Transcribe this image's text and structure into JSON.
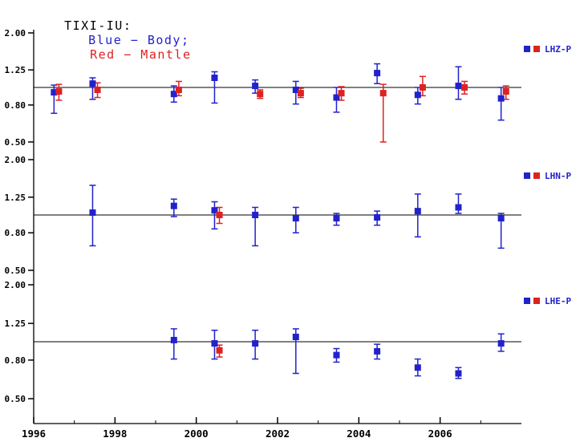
{
  "title": {
    "station": "TIXI-IU:",
    "body_label": "Blue − Body;",
    "mantle_label": "Red − Mantle"
  },
  "colors": {
    "body": "#2222cc",
    "mantle": "#dd2222",
    "axis": "#000000",
    "ref_line": "#000000"
  },
  "xaxis": {
    "min": 1996,
    "max": 2008,
    "ticks": [
      1996,
      1998,
      2000,
      2002,
      2004,
      2006
    ],
    "minor_ticks": [
      1997,
      1999,
      2001,
      2003,
      2005,
      2007
    ]
  },
  "chart_data": [
    {
      "type": "scatter",
      "label": "LHZ-P",
      "xlabel": "",
      "ylabel": "",
      "ylim": [
        0.5,
        2.0
      ],
      "yticks": [
        2.0,
        1.25,
        0.8,
        0.5
      ],
      "ref_y": 1.0,
      "legend_position": "right",
      "series": [
        {
          "name": "Body",
          "color_key": "body",
          "points": [
            {
              "x": 1996.5,
              "y": 0.94,
              "lo": 0.72,
              "hi": 1.03
            },
            {
              "x": 1997.45,
              "y": 1.05,
              "lo": 0.86,
              "hi": 1.13
            },
            {
              "x": 1999.45,
              "y": 0.92,
              "lo": 0.83,
              "hi": 1.02
            },
            {
              "x": 2000.45,
              "y": 1.13,
              "lo": 0.82,
              "hi": 1.22
            },
            {
              "x": 2001.45,
              "y": 1.02,
              "lo": 0.93,
              "hi": 1.1
            },
            {
              "x": 2002.45,
              "y": 0.97,
              "lo": 0.81,
              "hi": 1.08
            },
            {
              "x": 2003.45,
              "y": 0.88,
              "lo": 0.73,
              "hi": 1.0
            },
            {
              "x": 2004.45,
              "y": 1.2,
              "lo": 1.05,
              "hi": 1.35
            },
            {
              "x": 2005.45,
              "y": 0.91,
              "lo": 0.81,
              "hi": 1.0
            },
            {
              "x": 2006.45,
              "y": 1.02,
              "lo": 0.86,
              "hi": 1.3
            },
            {
              "x": 2007.5,
              "y": 0.87,
              "lo": 0.66,
              "hi": 1.0
            }
          ]
        },
        {
          "name": "Mantle",
          "color_key": "mantle",
          "points": [
            {
              "x": 1996.62,
              "y": 0.95,
              "lo": 0.85,
              "hi": 1.04
            },
            {
              "x": 1997.57,
              "y": 0.97,
              "lo": 0.88,
              "hi": 1.06
            },
            {
              "x": 1999.57,
              "y": 0.97,
              "lo": 0.9,
              "hi": 1.08
            },
            {
              "x": 2001.57,
              "y": 0.92,
              "lo": 0.87,
              "hi": 0.97
            },
            {
              "x": 2002.57,
              "y": 0.93,
              "lo": 0.88,
              "hi": 0.99
            },
            {
              "x": 2003.57,
              "y": 0.93,
              "lo": 0.85,
              "hi": 1.01
            },
            {
              "x": 2004.6,
              "y": 0.93,
              "lo": 0.5,
              "hi": 1.04
            },
            {
              "x": 2005.57,
              "y": 1.0,
              "lo": 0.9,
              "hi": 1.15
            },
            {
              "x": 2006.6,
              "y": 1.0,
              "lo": 0.92,
              "hi": 1.08
            },
            {
              "x": 2007.62,
              "y": 0.95,
              "lo": 0.86,
              "hi": 1.02
            }
          ]
        }
      ]
    },
    {
      "type": "scatter",
      "label": "LHN-P",
      "xlabel": "",
      "ylabel": "",
      "ylim": [
        0.5,
        2.0
      ],
      "yticks": [
        2.0,
        1.25,
        0.8,
        0.5
      ],
      "ref_y": 1.0,
      "legend_position": "right",
      "series": [
        {
          "name": "Body",
          "color_key": "body",
          "points": [
            {
              "x": 1997.45,
              "y": 1.03,
              "lo": 0.68,
              "hi": 1.45
            },
            {
              "x": 1999.45,
              "y": 1.12,
              "lo": 0.98,
              "hi": 1.22
            },
            {
              "x": 2000.45,
              "y": 1.06,
              "lo": 0.84,
              "hi": 1.18
            },
            {
              "x": 2001.45,
              "y": 1.0,
              "lo": 0.68,
              "hi": 1.1
            },
            {
              "x": 2002.45,
              "y": 0.96,
              "lo": 0.8,
              "hi": 1.1
            },
            {
              "x": 2003.45,
              "y": 0.96,
              "lo": 0.88,
              "hi": 1.02
            },
            {
              "x": 2004.45,
              "y": 0.97,
              "lo": 0.88,
              "hi": 1.05
            },
            {
              "x": 2005.45,
              "y": 1.05,
              "lo": 0.76,
              "hi": 1.3
            },
            {
              "x": 2006.45,
              "y": 1.1,
              "lo": 1.02,
              "hi": 1.3
            },
            {
              "x": 2007.5,
              "y": 0.96,
              "lo": 0.66,
              "hi": 1.02
            }
          ]
        },
        {
          "name": "Mantle",
          "color_key": "mantle",
          "points": [
            {
              "x": 2000.57,
              "y": 1.0,
              "lo": 0.9,
              "hi": 1.1
            }
          ]
        }
      ]
    },
    {
      "type": "scatter",
      "label": "LHE-P",
      "xlabel": "",
      "ylabel": "",
      "ylim": [
        0.5,
        2.0
      ],
      "yticks": [
        2.0,
        1.25,
        0.8,
        0.5
      ],
      "ref_y": 1.0,
      "legend_position": "right",
      "series": [
        {
          "name": "Body",
          "color_key": "body",
          "points": [
            {
              "x": 1999.45,
              "y": 1.02,
              "lo": 0.81,
              "hi": 1.17
            },
            {
              "x": 2000.45,
              "y": 0.98,
              "lo": 0.81,
              "hi": 1.15
            },
            {
              "x": 2001.45,
              "y": 0.98,
              "lo": 0.81,
              "hi": 1.15
            },
            {
              "x": 2002.45,
              "y": 1.06,
              "lo": 0.68,
              "hi": 1.17
            },
            {
              "x": 2003.45,
              "y": 0.85,
              "lo": 0.78,
              "hi": 0.92
            },
            {
              "x": 2004.45,
              "y": 0.89,
              "lo": 0.81,
              "hi": 0.97
            },
            {
              "x": 2005.45,
              "y": 0.73,
              "lo": 0.66,
              "hi": 0.81
            },
            {
              "x": 2006.45,
              "y": 0.68,
              "lo": 0.64,
              "hi": 0.73
            },
            {
              "x": 2007.5,
              "y": 0.98,
              "lo": 0.89,
              "hi": 1.1
            }
          ]
        },
        {
          "name": "Mantle",
          "color_key": "mantle",
          "points": [
            {
              "x": 2000.57,
              "y": 0.9,
              "lo": 0.83,
              "hi": 0.96
            }
          ]
        }
      ]
    }
  ]
}
